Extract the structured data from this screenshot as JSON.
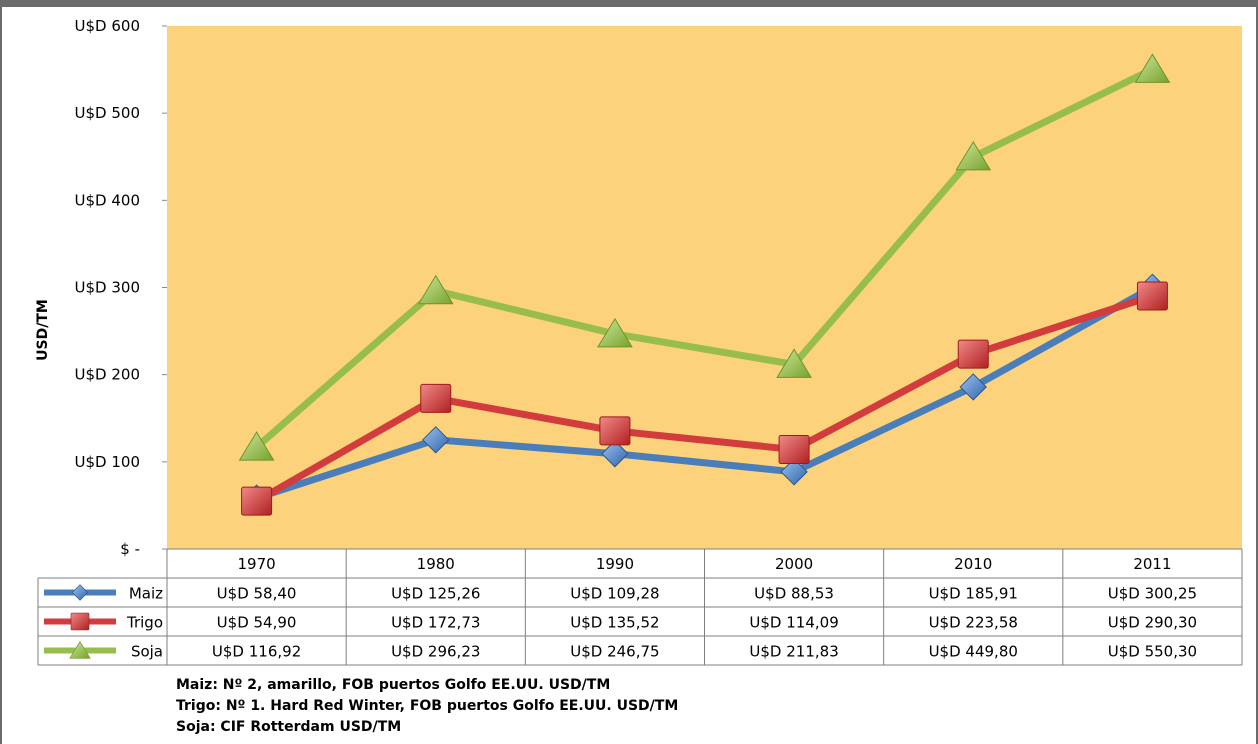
{
  "chart_data": {
    "type": "line",
    "categories": [
      "1970",
      "1980",
      "1990",
      "2000",
      "2010",
      "2011"
    ],
    "ylabel": "USD/TM",
    "ylim": [
      0,
      600
    ],
    "yticks": [
      "$ -",
      "U$D 100",
      "U$D 200",
      "U$D 300",
      "U$D 400",
      "U$D 500",
      "U$D 600"
    ],
    "series": [
      {
        "name": "Maiz",
        "color": "#4a7ebb",
        "marker": "diamond",
        "values": [
          58.4,
          125.26,
          109.28,
          88.53,
          185.91,
          300.25
        ],
        "labels": [
          "U$D 58,40",
          "U$D 125,26",
          "U$D 109,28",
          "U$D 88,53",
          "U$D 185,91",
          "U$D 300,25"
        ]
      },
      {
        "name": "Trigo",
        "color": "#d23c3c",
        "marker": "square",
        "values": [
          54.9,
          172.73,
          135.52,
          114.09,
          223.58,
          290.3
        ],
        "labels": [
          "U$D 54,90",
          "U$D 172,73",
          "U$D 135,52",
          "U$D 114,09",
          "U$D 223,58",
          "U$D 290,30"
        ]
      },
      {
        "name": "Soja",
        "color": "#98bd4f",
        "marker": "triangle",
        "values": [
          116.92,
          296.23,
          246.75,
          211.83,
          449.8,
          550.3
        ],
        "labels": [
          "U$D 116,92",
          "U$D 296,23",
          "U$D 246,75",
          "U$D 211,83",
          "U$D 449,80",
          "U$D 550,30"
        ]
      }
    ],
    "plot_background": "#fcd27c",
    "grid": false,
    "legend": "data-table"
  },
  "notes": [
    "Maiz:  Nº 2, amarillo, FOB puertos Golfo EE.UU. USD/TM",
    "Trigo: Nº 1. Hard Red Winter, FOB puertos Golfo EE.UU. USD/TM",
    "Soja: CIF Rotterdam USD/TM"
  ]
}
